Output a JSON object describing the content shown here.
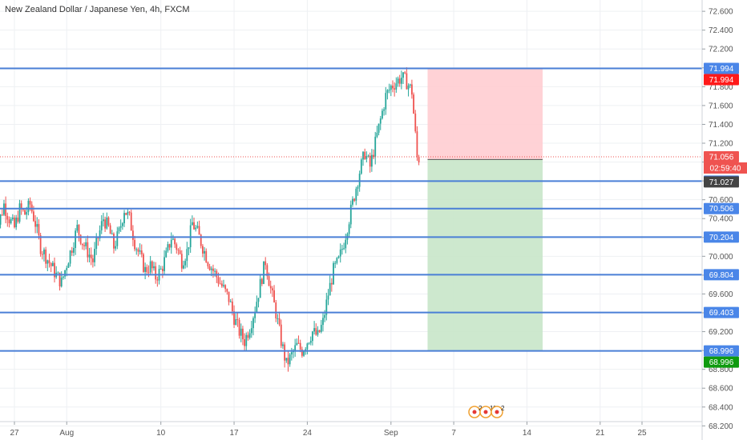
{
  "title": "New Zealand Dollar / Japanese Yen, 4h, FXCM",
  "chart_data": {
    "type": "candlestick",
    "symbol": "New Zealand Dollar / Japanese Yen",
    "timeframe": "4h",
    "source": "FXCM",
    "ylim": [
      68.05,
      72.72
    ],
    "y_ticks": [
      "72.600",
      "72.400",
      "72.200",
      "72.000",
      "71.800",
      "71.600",
      "71.400",
      "71.200",
      "71.000",
      "70.800",
      "70.600",
      "70.400",
      "70.200",
      "70.000",
      "69.800",
      "69.600",
      "69.400",
      "69.200",
      "69.000",
      "68.800",
      "68.600",
      "68.400",
      "68.200"
    ],
    "x_ticks": [
      {
        "label": "27",
        "day": 0
      },
      {
        "label": "Aug",
        "day": 5
      },
      {
        "label": "10",
        "day": 14
      },
      {
        "label": "17",
        "day": 21
      },
      {
        "label": "24",
        "day": 28
      },
      {
        "label": "Sep",
        "day": 36
      },
      {
        "label": "7",
        "day": 42
      },
      {
        "label": "14",
        "day": 49
      },
      {
        "label": "21",
        "day": 56
      },
      {
        "label": "25",
        "day": 60
      }
    ],
    "candles_close_path": [
      [
        -2,
        70.48
      ],
      [
        -1.5,
        70.35
      ],
      [
        -1,
        70.55
      ],
      [
        -0.5,
        70.4
      ],
      [
        0,
        70.3
      ],
      [
        0.5,
        70.5
      ],
      [
        1,
        70.45
      ],
      [
        1.5,
        70.55
      ],
      [
        2,
        70.35
      ],
      [
        2.5,
        70.1
      ],
      [
        3,
        70.0
      ],
      [
        3.5,
        69.9
      ],
      [
        4,
        69.8
      ],
      [
        4.5,
        69.72
      ],
      [
        5,
        69.92
      ],
      [
        5.5,
        70.1
      ],
      [
        6,
        70.3
      ],
      [
        6.5,
        70.15
      ],
      [
        7,
        70.05
      ],
      [
        7.5,
        69.95
      ],
      [
        8,
        70.2
      ],
      [
        8.5,
        70.4
      ],
      [
        9,
        70.3
      ],
      [
        9.5,
        70.1
      ],
      [
        10,
        70.25
      ],
      [
        10.5,
        70.5
      ],
      [
        11,
        70.4
      ],
      [
        11.5,
        70.15
      ],
      [
        12,
        70.0
      ],
      [
        12.5,
        69.85
      ],
      [
        13,
        69.9
      ],
      [
        13.5,
        69.78
      ],
      [
        14,
        69.85
      ],
      [
        14.5,
        70.0
      ],
      [
        15,
        70.2
      ],
      [
        15.5,
        70.1
      ],
      [
        16,
        69.95
      ],
      [
        16.5,
        70.05
      ],
      [
        17,
        70.35
      ],
      [
        17.5,
        70.25
      ],
      [
        18,
        70.1
      ],
      [
        18.5,
        69.95
      ],
      [
        19,
        69.85
      ],
      [
        19.5,
        69.75
      ],
      [
        20,
        69.65
      ],
      [
        20.5,
        69.55
      ],
      [
        21,
        69.35
      ],
      [
        21.5,
        69.2
      ],
      [
        22,
        69.1
      ],
      [
        22.5,
        69.25
      ],
      [
        23,
        69.45
      ],
      [
        23.5,
        69.7
      ],
      [
        24,
        69.95
      ],
      [
        24.5,
        69.65
      ],
      [
        25,
        69.4
      ],
      [
        25.5,
        69.1
      ],
      [
        26,
        68.85
      ],
      [
        26.5,
        68.95
      ],
      [
        27,
        69.05
      ],
      [
        27.5,
        69.0
      ],
      [
        28,
        69.1
      ],
      [
        28.5,
        69.2
      ],
      [
        29,
        69.15
      ],
      [
        29.5,
        69.3
      ],
      [
        30,
        69.6
      ],
      [
        30.5,
        69.85
      ],
      [
        31,
        69.95
      ],
      [
        31.5,
        70.15
      ],
      [
        32,
        70.4
      ],
      [
        32.5,
        70.65
      ],
      [
        33,
        70.9
      ],
      [
        33.5,
        71.1
      ],
      [
        34,
        70.95
      ],
      [
        34.5,
        71.2
      ],
      [
        35,
        71.45
      ],
      [
        35.5,
        71.7
      ],
      [
        36,
        71.8
      ],
      [
        36.5,
        71.85
      ],
      [
        37,
        71.9
      ],
      [
        37.5,
        71.85
      ],
      [
        38,
        71.75
      ],
      [
        38.5,
        71.05
      ],
      [
        38.8,
        71.03
      ]
    ],
    "horizontal_levels": [
      {
        "price": 71.994,
        "label": "71.994"
      },
      {
        "price": 70.798,
        "label": "70.798"
      },
      {
        "price": 70.506,
        "label": "70.506"
      },
      {
        "price": 70.204,
        "label": "70.204"
      },
      {
        "price": 69.804,
        "label": "69.804"
      },
      {
        "price": 69.403,
        "label": "69.403"
      },
      {
        "price": 68.996,
        "label": "68.996"
      }
    ],
    "position": {
      "type": "short",
      "entry": 71.027,
      "stop": 71.994,
      "target": 68.996,
      "start_day": 39.5,
      "end_day": 50.5
    },
    "price_tags": [
      {
        "price": 71.994,
        "label": "71.994",
        "color": "#ff1a1a"
      },
      {
        "price": 71.056,
        "label": "71.056",
        "color": "#ef5350"
      },
      {
        "price": 71.027,
        "label": "71.027",
        "color": "#444444"
      },
      {
        "price": 68.996,
        "label": "68.996",
        "color": "#0f9b0f"
      }
    ],
    "countdown": "02:59:40",
    "current_price": 71.056,
    "events": [
      {
        "label": "2"
      },
      {
        "label": "11"
      },
      {
        "label": "2"
      }
    ],
    "colors": {
      "up": "#26a69a",
      "down": "#ef5350",
      "level_line": "#4a7fd6",
      "level_tag": "#4a86e8",
      "stop_zone": "#ffcdd2",
      "target_zone": "#c8e6c9",
      "grid": "#eef0f3"
    },
    "grid": true
  }
}
